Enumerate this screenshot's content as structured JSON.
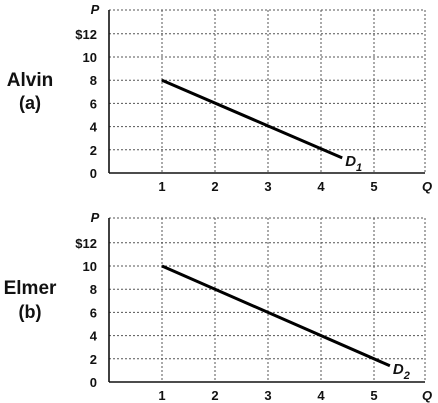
{
  "chart_data": [
    {
      "type": "line",
      "panel_name": "Alvin",
      "panel_tag": "(a)",
      "ylabel": "P",
      "xlabel": "Q",
      "xlim": [
        0,
        6
      ],
      "ylim": [
        0,
        14
      ],
      "x_ticks": [
        "1",
        "2",
        "3",
        "4",
        "5"
      ],
      "y_ticks": [
        "0",
        "2",
        "4",
        "6",
        "8",
        "10",
        "$12"
      ],
      "grid": true,
      "series": [
        {
          "name": "D",
          "subscript": "1",
          "x": [
            1,
            4.4
          ],
          "y": [
            8,
            1.3
          ]
        }
      ]
    },
    {
      "type": "line",
      "panel_name": "Elmer",
      "panel_tag": "(b)",
      "ylabel": "P",
      "xlabel": "Q",
      "xlim": [
        0,
        6
      ],
      "ylim": [
        0,
        14
      ],
      "x_ticks": [
        "1",
        "2",
        "3",
        "4",
        "5"
      ],
      "y_ticks": [
        "0",
        "2",
        "4",
        "6",
        "8",
        "10",
        "$12"
      ],
      "grid": true,
      "series": [
        {
          "name": "D",
          "subscript": "2",
          "x": [
            1,
            5.3
          ],
          "y": [
            10,
            1.4
          ]
        }
      ]
    }
  ]
}
